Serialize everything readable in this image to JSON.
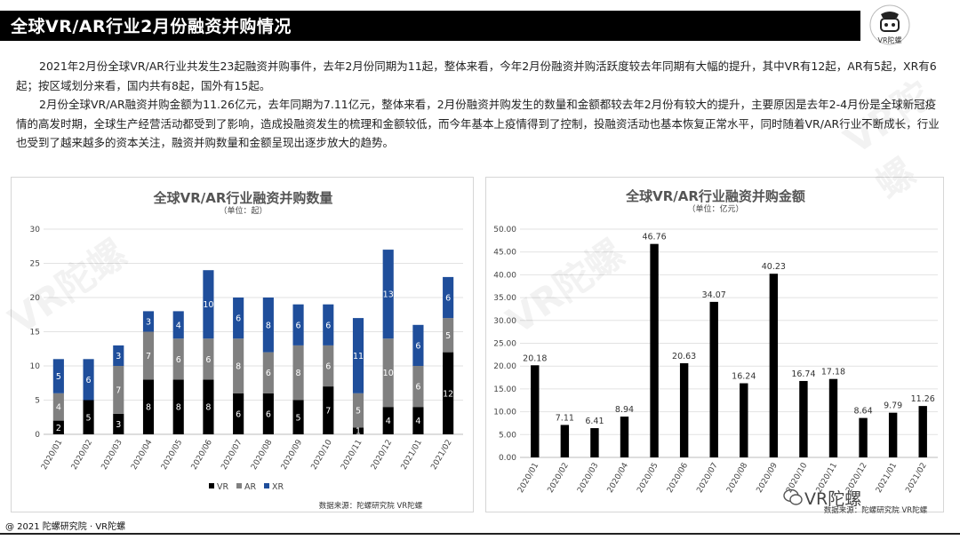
{
  "header": {
    "title": "全球VR/AR行业2月份融资并购情况"
  },
  "logo": {
    "text": "VR陀螺",
    "icon": "robot-head-icon"
  },
  "intro": {
    "paragraphs": [
      "2021年2月份全球VR/AR行业共发生23起融资并购事件，去年2月份同期为11起，整体来看，今年2月份融资并购活跃度较去年同期有大幅的提升，其中VR有12起，AR有5起，XR有6起；按区域划分来看，国内共有8起，国外有15起。",
      "2月份全球VR/AR融资并购金额为11.26亿元，去年同期为7.11亿元，整体来看，2月份融资并购发生的数量和金额都较去年2月份有较大的提升，主要原因是去年2-4月份是全球新冠疫情的高发时期，全球生产经营活动都受到了影响，造成投融资发生的梳理和金额较低，而今年基本上疫情得到了控制，投融资活动也基本恢复正常水平，同时随着VR/AR行业不断成长，行业也受到了越来越多的资本关注，融资并购数量和金额呈现出逐步放大的趋势。"
    ]
  },
  "chart_data": [
    {
      "type": "bar",
      "stacked": true,
      "title": "全球VR/AR行业融资并购数量",
      "subtitle": "（单位：起）",
      "categories": [
        "2020/01",
        "2020/02",
        "2020/03",
        "2020/04",
        "2020/05",
        "2020/06",
        "2020/07",
        "2020/08",
        "2020/09",
        "2020/10",
        "2020/11",
        "2020/12",
        "2021/01",
        "2021/02"
      ],
      "series": [
        {
          "name": "VR",
          "color": "#000000",
          "values": [
            2,
            5,
            3,
            8,
            8,
            8,
            6,
            6,
            5,
            7,
            1,
            4,
            4,
            12
          ]
        },
        {
          "name": "AR",
          "color": "#808080",
          "values": [
            4,
            0,
            7,
            7,
            6,
            6,
            8,
            6,
            8,
            6,
            5,
            10,
            6,
            5
          ]
        },
        {
          "name": "XR",
          "color": "#1f4e9b",
          "values": [
            5,
            6,
            3,
            3,
            4,
            10,
            6,
            8,
            6,
            6,
            11,
            13,
            6,
            6
          ]
        }
      ],
      "ylim": [
        0,
        30
      ],
      "yticks": [
        "0",
        "5",
        "10",
        "15",
        "20",
        "25",
        "30"
      ],
      "legend": "bottom",
      "source": "数据来源：陀螺研究院 VR陀螺"
    },
    {
      "type": "bar",
      "title": "全球VR/AR行业融资并购金额",
      "subtitle": "（单位：亿元）",
      "categories": [
        "2020/01",
        "2020/02",
        "2020/03",
        "2020/04",
        "2020/05",
        "2020/06",
        "2020/07",
        "2020/08",
        "2020/09",
        "2020/10",
        "2020/11",
        "2020/12",
        "2021/01",
        "2021/02"
      ],
      "values": [
        20.18,
        7.11,
        6.41,
        8.94,
        46.76,
        20.63,
        34.07,
        16.24,
        40.23,
        16.74,
        17.18,
        8.64,
        9.79,
        11.26
      ],
      "labels": [
        "20.18",
        "7.11",
        "6.41",
        "8.94",
        "46.76",
        "20.63",
        "34.07",
        "16.24",
        "40.23",
        "16.74",
        "17.18",
        "8.64",
        "9.79",
        "11.26"
      ],
      "color": "#000000",
      "ylim": [
        0,
        50
      ],
      "yticks": [
        "0.00",
        "5.00",
        "10.00",
        "15.00",
        "20.00",
        "25.00",
        "30.00",
        "35.00",
        "40.00",
        "45.00",
        "50.00"
      ],
      "source": "数据来源：陀螺研究院 VR陀螺"
    }
  ],
  "footer": {
    "copyright": "@ 2021 陀螺研究院 · VR陀螺",
    "watermark": "VR陀螺",
    "watermark_icon": "wechat-icon"
  },
  "watermark_bg": "VR陀螺"
}
